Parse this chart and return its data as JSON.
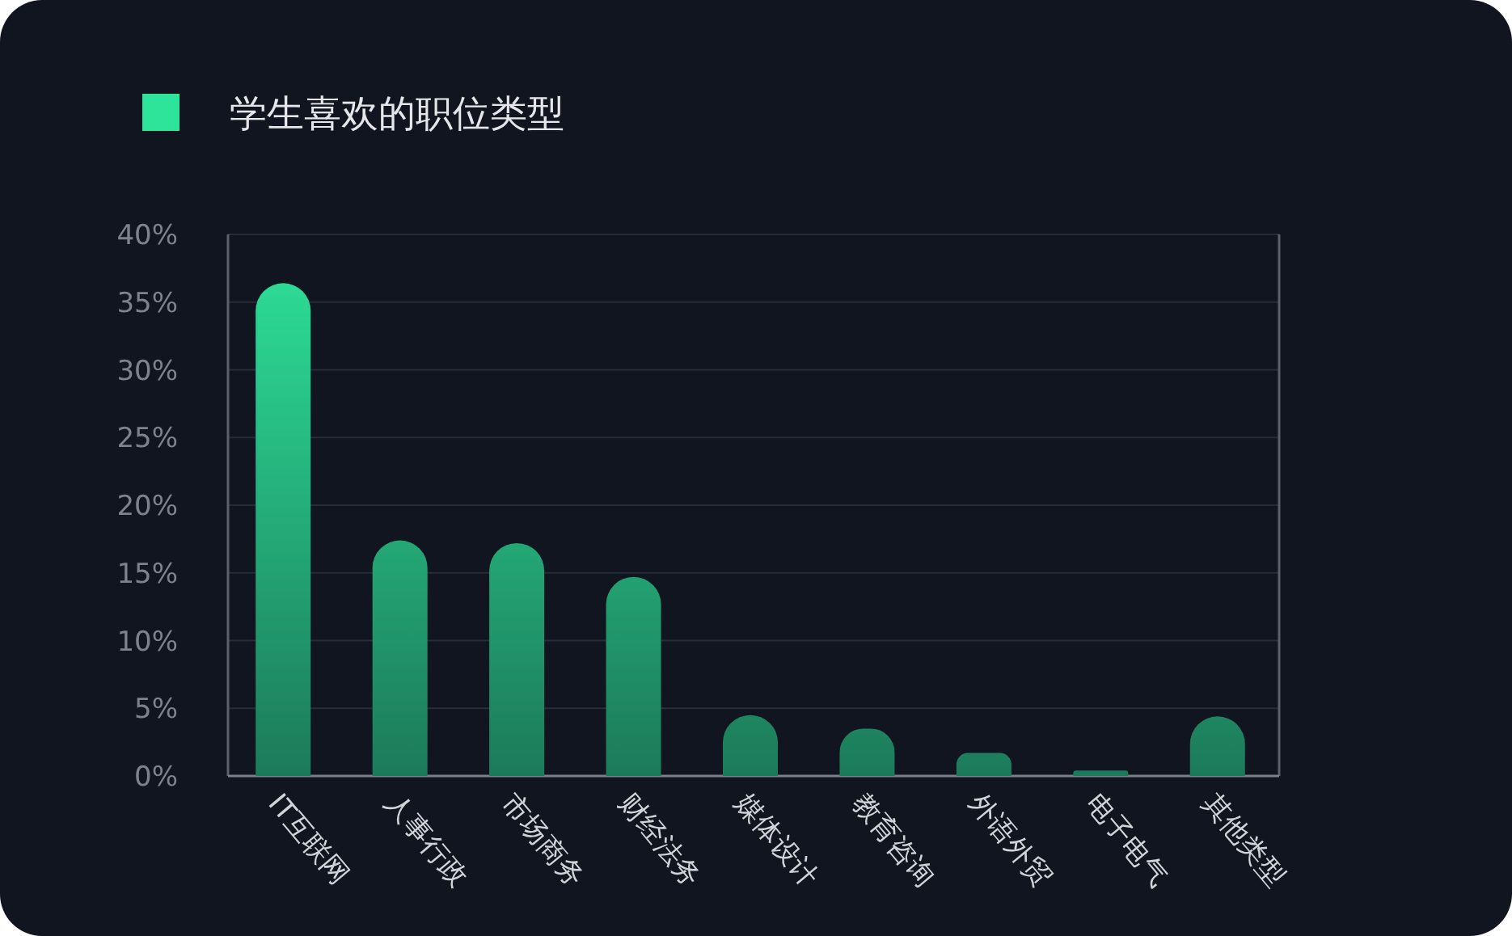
{
  "chart_data": {
    "type": "bar",
    "categories": [
      "IT互联网",
      "人事行政",
      "市场商务",
      "财经法务",
      "媒体设计",
      "教育咨询",
      "外语外贸",
      "电子电气",
      "其他类型"
    ],
    "series": [
      {
        "name": "学生喜欢的职位类型",
        "color": "#2ee39a",
        "values": [
          36.4,
          17.4,
          17.2,
          14.7,
          4.5,
          3.5,
          1.7,
          0.4,
          4.4
        ]
      }
    ],
    "ylim": [
      0,
      40
    ],
    "yticks": [
      {
        "value": 0,
        "label": "0%"
      },
      {
        "value": 5,
        "label": "5%"
      },
      {
        "value": 10,
        "label": "10%"
      },
      {
        "value": 15,
        "label": "15%"
      },
      {
        "value": 20,
        "label": "20%"
      },
      {
        "value": 25,
        "label": "25%"
      },
      {
        "value": 30,
        "label": "30%"
      },
      {
        "value": 35,
        "label": "35%"
      },
      {
        "value": 40,
        "label": "40%"
      }
    ],
    "grid": "y",
    "legend": "top left"
  }
}
